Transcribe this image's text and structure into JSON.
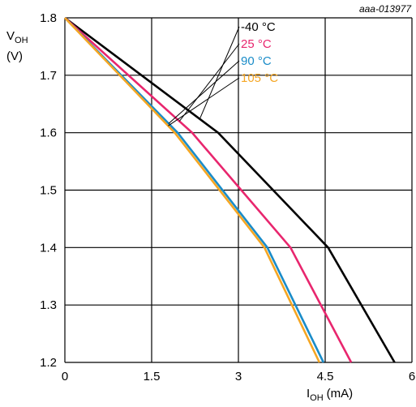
{
  "figure_id": "aaa-013977",
  "chart_data": {
    "type": "line",
    "xlabel": {
      "main": "I",
      "sub": "OH",
      "unit": "(mA)"
    },
    "ylabel": {
      "main": "V",
      "sub": "OH",
      "unit": "(V)"
    },
    "xlim": [
      0,
      6
    ],
    "ylim": [
      1.2,
      1.8
    ],
    "x_ticks": [
      0,
      1.5,
      3,
      4.5,
      6
    ],
    "x_tick_labels": [
      "0",
      "1.5",
      "3",
      "4.5",
      "6"
    ],
    "y_ticks": [
      1.2,
      1.3,
      1.4,
      1.5,
      1.6,
      1.7,
      1.8
    ],
    "y_tick_labels": [
      "1.2",
      "1.3",
      "1.4",
      "1.5",
      "1.6",
      "1.7",
      "1.8"
    ],
    "grid": true,
    "legend_position": "top-center",
    "series": [
      {
        "name": "-40 °C",
        "color": "#000000",
        "x": [
          0,
          2.65,
          4.55,
          5.7
        ],
        "y": [
          1.8,
          1.6,
          1.4,
          1.2
        ]
      },
      {
        "name": "25 °C",
        "color": "#e8266e",
        "x": [
          0,
          2.2,
          3.9,
          4.95
        ],
        "y": [
          1.8,
          1.6,
          1.4,
          1.2
        ]
      },
      {
        "name": "90 °C",
        "color": "#1a8cc8",
        "x": [
          0,
          1.95,
          3.5,
          4.47
        ],
        "y": [
          1.8,
          1.6,
          1.4,
          1.2
        ]
      },
      {
        "name": "105 °C",
        "color": "#f5a623",
        "x": [
          0,
          1.9,
          3.45,
          4.4
        ],
        "y": [
          1.8,
          1.6,
          1.4,
          1.2
        ]
      }
    ]
  }
}
